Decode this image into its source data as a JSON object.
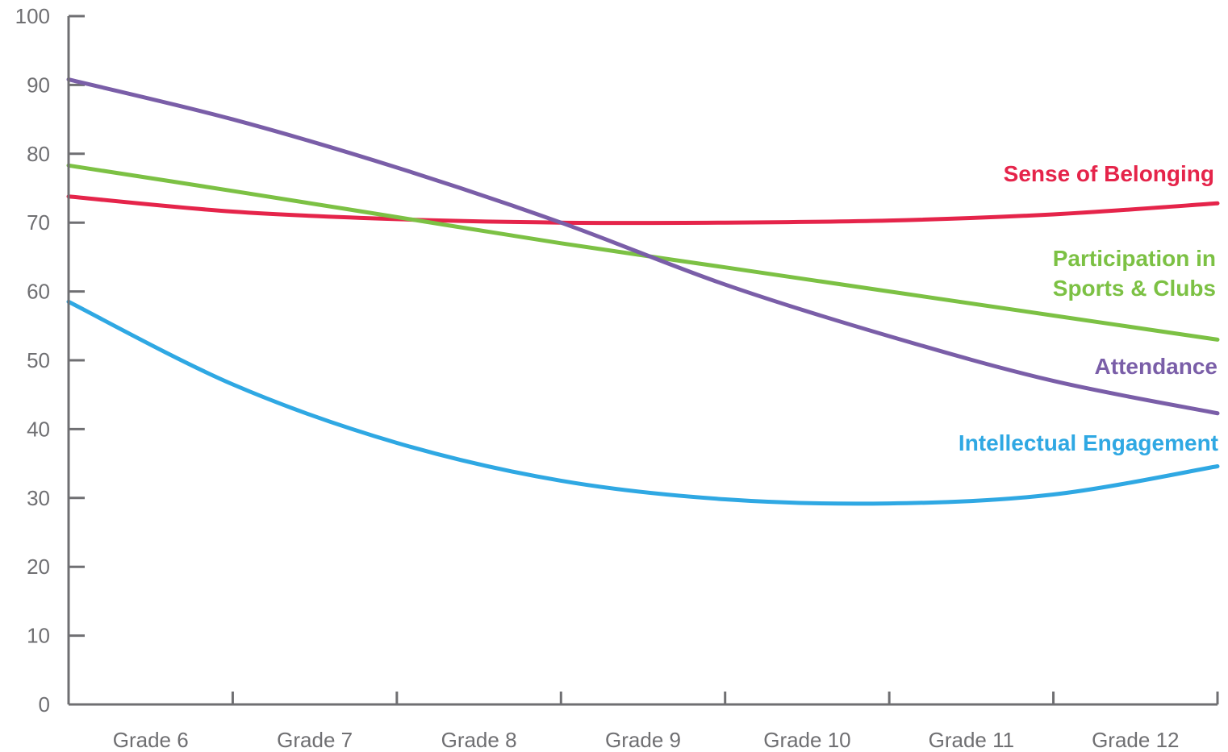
{
  "chart_data": {
    "type": "line",
    "title": "",
    "xlabel": "",
    "ylabel": "",
    "ylim": [
      0,
      100
    ],
    "yticks": [
      "0",
      "10",
      "20",
      "30",
      "40",
      "50",
      "60",
      "70",
      "80",
      "90",
      "100"
    ],
    "categories": [
      "Grade 6",
      "Grade 7",
      "Grade 8",
      "Grade 9",
      "Grade 10",
      "Grade 11",
      "Grade 12"
    ],
    "x": [
      0,
      1,
      2,
      3,
      4,
      5,
      6,
      7
    ],
    "grid": false,
    "legend": "labels at right end of each line",
    "series": [
      {
        "name": "Sense of Belonging",
        "label_lines": [
          "Sense of Belonging"
        ],
        "color": "#e5244a",
        "values": [
          73.8,
          71.6,
          70.5,
          70.0,
          70.0,
          70.3,
          71.2,
          72.8
        ]
      },
      {
        "name": "Participation in Sports & Clubs",
        "label_lines": [
          "Participation in",
          "Sports & Clubs"
        ],
        "color": "#7cc144",
        "values": [
          78.3,
          74.6,
          70.8,
          67.0,
          63.5,
          60.0,
          56.5,
          53.0
        ]
      },
      {
        "name": "Attendance",
        "label_lines": [
          "Attendance"
        ],
        "color": "#7a5ea8",
        "values": [
          90.8,
          85.0,
          78.0,
          70.0,
          61.0,
          53.5,
          47.0,
          42.3
        ]
      },
      {
        "name": "Intellectual Engagement",
        "label_lines": [
          "Intellectual Engagement"
        ],
        "color": "#2fa8e3",
        "values": [
          58.5,
          46.5,
          38.0,
          32.5,
          29.8,
          29.2,
          30.5,
          34.6
        ]
      }
    ]
  }
}
